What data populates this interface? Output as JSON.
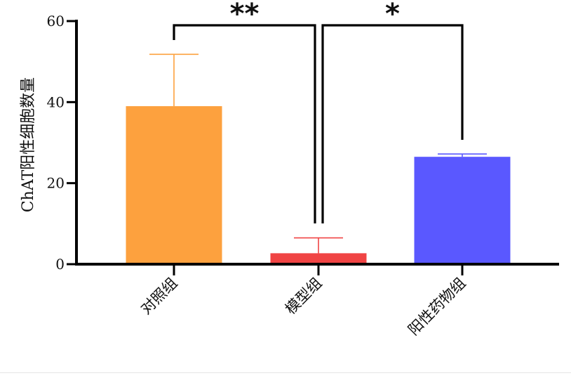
{
  "chart_data": {
    "type": "bar",
    "categories": [
      "对照组",
      "模型组",
      "阳性药物组"
    ],
    "values": [
      39,
      2.7,
      26.5
    ],
    "errors": [
      12.8,
      3.8,
      0.7
    ],
    "colors": [
      "#FDA13E",
      "#F04444",
      "#5A58FF"
    ],
    "ylabel": "ChAT阳性细胞数量",
    "xlabel": "",
    "title": "",
    "ylim": [
      0,
      60
    ],
    "yticks": [
      0,
      20,
      40,
      60
    ],
    "grid": false,
    "significance": [
      {
        "from": 0,
        "to": 1,
        "label": "**"
      },
      {
        "from": 1,
        "to": 2,
        "label": "*"
      }
    ]
  }
}
